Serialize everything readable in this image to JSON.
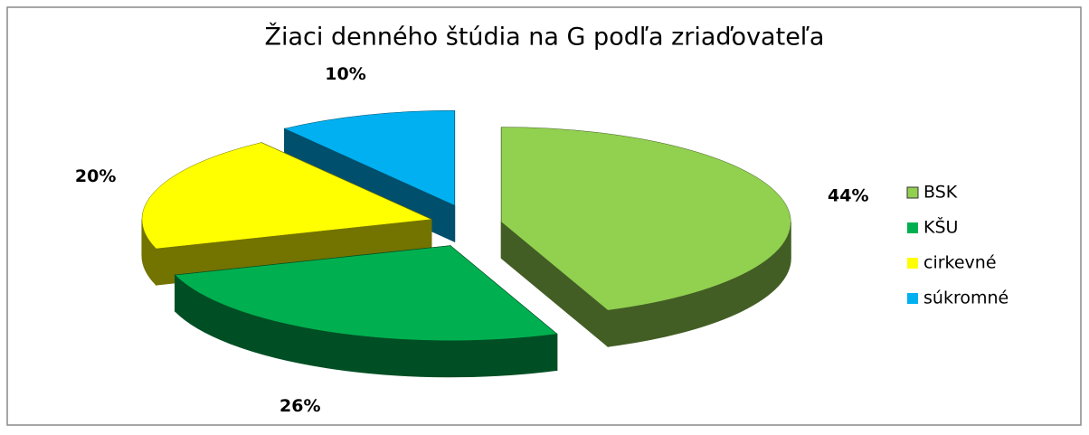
{
  "chart_data": {
    "type": "pie3d",
    "title": "Žiaci denného štúdia na G podľa zriaďovateľa",
    "categories": [
      "BSK",
      "KŠU",
      "cirkevné",
      "súkromné"
    ],
    "values": [
      44,
      26,
      20,
      10
    ],
    "value_labels": [
      "44%",
      "26%",
      "20%",
      "10%"
    ],
    "colors": [
      "#92d050",
      "#00b050",
      "#ffff00",
      "#00b0f0"
    ],
    "legend": "right"
  }
}
